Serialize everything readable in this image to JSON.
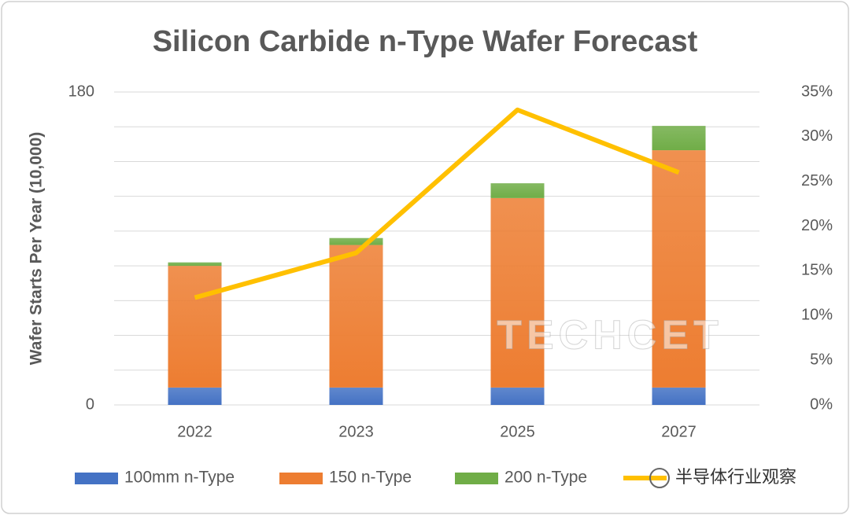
{
  "chart_data": {
    "type": "bar",
    "stacked": true,
    "title": "Silicon Carbide n-Type Wafer Forecast",
    "y_label": "Wafer Starts Per Year (10,000)",
    "categories": [
      "2022",
      "2023",
      "2025",
      "2027"
    ],
    "series": [
      {
        "name": "100mm n-Type",
        "type": "bar",
        "color": "#4472c4",
        "values": [
          10,
          10,
          10,
          10
        ]
      },
      {
        "name": "150 n-Type",
        "type": "bar",
        "color": "#ed7d31",
        "values": [
          70,
          82,
          109,
          136.5
        ]
      },
      {
        "name": "200 n-Type",
        "type": "bar",
        "color": "#70ad47",
        "values": [
          2,
          4,
          8.5,
          14
        ]
      },
      {
        "type": "line",
        "axis": "y2",
        "color": "#ffc000",
        "values": [
          12,
          17,
          33,
          26
        ]
      }
    ],
    "ylim": [
      0,
      180
    ],
    "yticks": [
      0,
      180
    ],
    "ygrid": [
      0,
      20,
      40,
      60,
      80,
      100,
      120,
      140,
      160,
      180
    ],
    "y2lim": [
      0,
      35
    ],
    "y2ticks": [
      {
        "value": 0,
        "label": "0%"
      },
      {
        "value": 5,
        "label": "5%"
      },
      {
        "value": 10,
        "label": "10%"
      },
      {
        "value": 15,
        "label": "15%"
      },
      {
        "value": 20,
        "label": "20%"
      },
      {
        "value": 25,
        "label": "25%"
      },
      {
        "value": 30,
        "label": "30%"
      },
      {
        "value": 35,
        "label": "35%"
      }
    ],
    "legend": "bottom",
    "watermarks": [
      "TECHCET",
      "半导体行业观察"
    ]
  }
}
